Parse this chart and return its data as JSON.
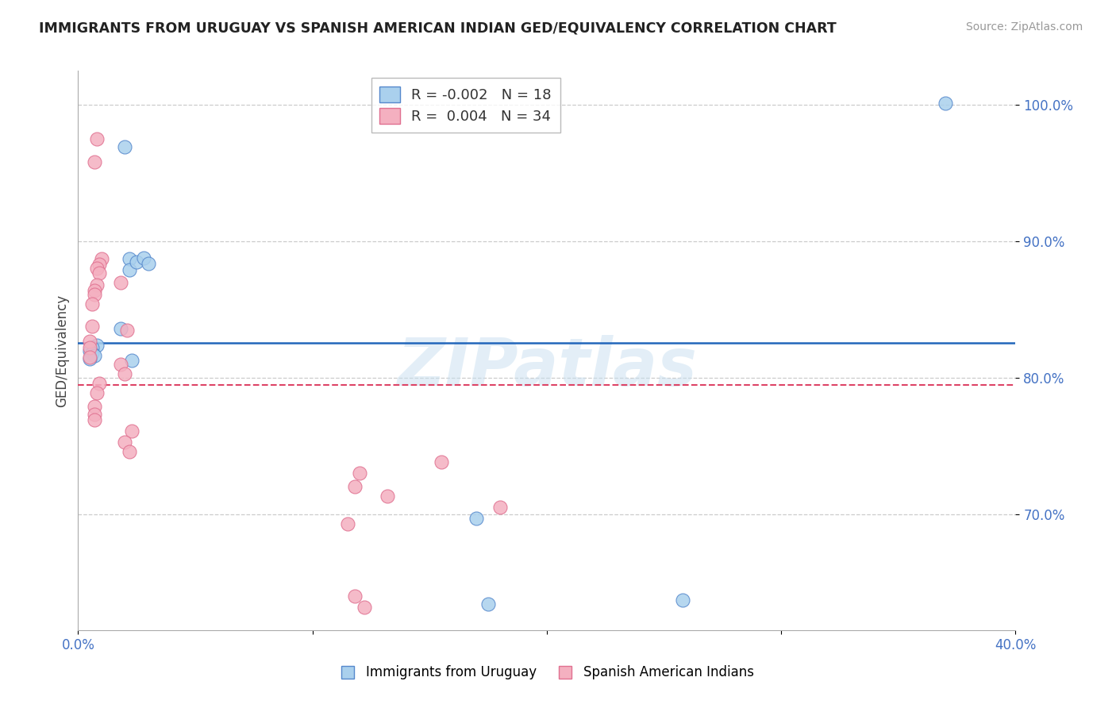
{
  "title": "IMMIGRANTS FROM URUGUAY VS SPANISH AMERICAN INDIAN GED/EQUIVALENCY CORRELATION CHART",
  "source": "Source: ZipAtlas.com",
  "ylabel": "GED/Equivalency",
  "xlim": [
    0.0,
    0.4
  ],
  "ylim": [
    0.615,
    1.025
  ],
  "xticks": [
    0.0,
    0.1,
    0.2,
    0.3,
    0.4
  ],
  "xtick_labels": [
    "0.0%",
    "",
    "",
    "",
    "40.0%"
  ],
  "yticks": [
    0.7,
    0.8,
    0.9,
    1.0
  ],
  "ytick_labels": [
    "70.0%",
    "80.0%",
    "90.0%",
    "100.0%"
  ],
  "blue_label": "Immigrants from Uruguay",
  "pink_label": "Spanish American Indians",
  "blue_R": -0.002,
  "blue_N": 18,
  "pink_R": 0.004,
  "pink_N": 34,
  "blue_color": "#aad0ed",
  "pink_color": "#f4b0c0",
  "blue_edge_color": "#5588cc",
  "pink_edge_color": "#e07090",
  "blue_line_color": "#2266bb",
  "pink_line_color": "#dd4466",
  "blue_intercept": 0.8255,
  "pink_intercept": 0.7945,
  "blue_x": [
    0.02,
    0.022,
    0.022,
    0.018,
    0.025,
    0.028,
    0.03,
    0.008,
    0.006,
    0.005,
    0.006,
    0.007,
    0.005,
    0.023,
    0.17,
    0.175,
    0.37,
    0.258
  ],
  "blue_y": [
    0.969,
    0.887,
    0.879,
    0.836,
    0.885,
    0.888,
    0.884,
    0.824,
    0.822,
    0.82,
    0.818,
    0.816,
    0.814,
    0.813,
    0.697,
    0.634,
    1.001,
    0.637
  ],
  "pink_x": [
    0.008,
    0.007,
    0.018,
    0.01,
    0.009,
    0.008,
    0.009,
    0.008,
    0.007,
    0.007,
    0.006,
    0.006,
    0.021,
    0.005,
    0.005,
    0.005,
    0.018,
    0.02,
    0.009,
    0.008,
    0.007,
    0.007,
    0.007,
    0.023,
    0.02,
    0.022,
    0.155,
    0.12,
    0.118,
    0.132,
    0.18,
    0.115,
    0.118,
    0.122
  ],
  "pink_y": [
    0.975,
    0.958,
    0.87,
    0.887,
    0.883,
    0.88,
    0.877,
    0.868,
    0.864,
    0.861,
    0.854,
    0.838,
    0.835,
    0.827,
    0.822,
    0.815,
    0.81,
    0.803,
    0.796,
    0.789,
    0.779,
    0.773,
    0.769,
    0.761,
    0.753,
    0.746,
    0.738,
    0.73,
    0.72,
    0.713,
    0.705,
    0.693,
    0.64,
    0.632
  ],
  "watermark": "ZIPatlas",
  "background_color": "#ffffff",
  "grid_color": "#cccccc",
  "title_color": "#222222",
  "axis_color": "#4472c4"
}
